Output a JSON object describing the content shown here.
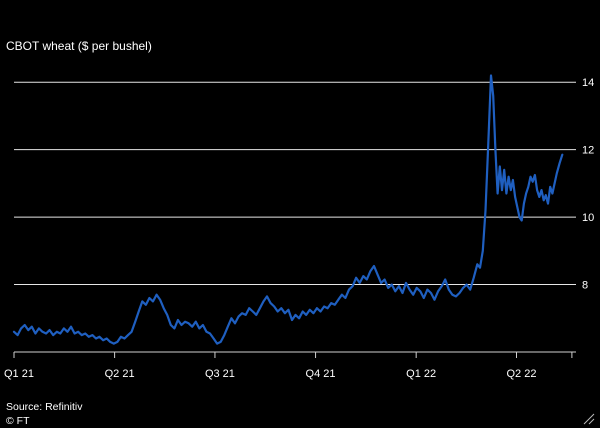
{
  "chart_data": {
    "type": "line",
    "title": "CBOT wheat ($ per bushel)",
    "source": "Source: Refinitiv",
    "credit": "© FT",
    "xlabel": "",
    "ylabel": "",
    "ylim": [
      6,
      14.6
    ],
    "xlim": [
      0,
      20.5
    ],
    "y_ticks": [
      8,
      10,
      12,
      14
    ],
    "x_ticks": [
      {
        "label": "Q1 21",
        "x": 0
      },
      {
        "label": "Q2 21",
        "x": 3.67
      },
      {
        "label": "Q3 21",
        "x": 7.33
      },
      {
        "label": "Q4 21",
        "x": 11
      },
      {
        "label": "Q1 22",
        "x": 14.67
      },
      {
        "label": "Q2 22",
        "x": 18.33
      }
    ],
    "grid": true,
    "colors": {
      "line": "#1f5fc0",
      "background": "#000000",
      "grid": "#e6e6e6"
    },
    "series": [
      {
        "name": "",
        "points": [
          [
            0.0,
            6.6
          ],
          [
            0.13,
            6.5
          ],
          [
            0.26,
            6.7
          ],
          [
            0.39,
            6.8
          ],
          [
            0.52,
            6.65
          ],
          [
            0.65,
            6.75
          ],
          [
            0.78,
            6.55
          ],
          [
            0.91,
            6.7
          ],
          [
            1.04,
            6.6
          ],
          [
            1.17,
            6.55
          ],
          [
            1.3,
            6.65
          ],
          [
            1.43,
            6.5
          ],
          [
            1.56,
            6.6
          ],
          [
            1.69,
            6.55
          ],
          [
            1.82,
            6.7
          ],
          [
            1.95,
            6.6
          ],
          [
            2.08,
            6.75
          ],
          [
            2.21,
            6.55
          ],
          [
            2.34,
            6.6
          ],
          [
            2.47,
            6.5
          ],
          [
            2.6,
            6.55
          ],
          [
            2.73,
            6.45
          ],
          [
            2.86,
            6.5
          ],
          [
            2.99,
            6.4
          ],
          [
            3.12,
            6.45
          ],
          [
            3.25,
            6.35
          ],
          [
            3.38,
            6.4
          ],
          [
            3.51,
            6.3
          ],
          [
            3.64,
            6.25
          ],
          [
            3.77,
            6.3
          ],
          [
            3.9,
            6.45
          ],
          [
            4.03,
            6.4
          ],
          [
            4.16,
            6.5
          ],
          [
            4.29,
            6.6
          ],
          [
            4.42,
            6.9
          ],
          [
            4.55,
            7.2
          ],
          [
            4.68,
            7.5
          ],
          [
            4.81,
            7.4
          ],
          [
            4.94,
            7.6
          ],
          [
            5.07,
            7.5
          ],
          [
            5.2,
            7.7
          ],
          [
            5.33,
            7.55
          ],
          [
            5.46,
            7.3
          ],
          [
            5.59,
            7.1
          ],
          [
            5.72,
            6.8
          ],
          [
            5.85,
            6.7
          ],
          [
            5.98,
            6.95
          ],
          [
            6.11,
            6.8
          ],
          [
            6.24,
            6.9
          ],
          [
            6.37,
            6.85
          ],
          [
            6.5,
            6.75
          ],
          [
            6.63,
            6.9
          ],
          [
            6.76,
            6.7
          ],
          [
            6.89,
            6.8
          ],
          [
            7.02,
            6.6
          ],
          [
            7.15,
            6.55
          ],
          [
            7.28,
            6.4
          ],
          [
            7.41,
            6.25
          ],
          [
            7.54,
            6.3
          ],
          [
            7.67,
            6.5
          ],
          [
            7.8,
            6.75
          ],
          [
            7.93,
            7.0
          ],
          [
            8.06,
            6.85
          ],
          [
            8.19,
            7.05
          ],
          [
            8.32,
            7.15
          ],
          [
            8.45,
            7.1
          ],
          [
            8.58,
            7.3
          ],
          [
            8.71,
            7.2
          ],
          [
            8.84,
            7.1
          ],
          [
            8.97,
            7.3
          ],
          [
            9.1,
            7.5
          ],
          [
            9.23,
            7.65
          ],
          [
            9.36,
            7.45
          ],
          [
            9.49,
            7.35
          ],
          [
            9.62,
            7.2
          ],
          [
            9.75,
            7.3
          ],
          [
            9.88,
            7.15
          ],
          [
            10.01,
            7.25
          ],
          [
            10.14,
            6.95
          ],
          [
            10.27,
            7.1
          ],
          [
            10.4,
            7.0
          ],
          [
            10.53,
            7.2
          ],
          [
            10.66,
            7.1
          ],
          [
            10.79,
            7.25
          ],
          [
            10.92,
            7.15
          ],
          [
            11.05,
            7.3
          ],
          [
            11.18,
            7.2
          ],
          [
            11.31,
            7.35
          ],
          [
            11.44,
            7.3
          ],
          [
            11.57,
            7.45
          ],
          [
            11.7,
            7.4
          ],
          [
            11.83,
            7.55
          ],
          [
            11.96,
            7.7
          ],
          [
            12.09,
            7.6
          ],
          [
            12.22,
            7.85
          ],
          [
            12.35,
            7.95
          ],
          [
            12.48,
            8.2
          ],
          [
            12.61,
            8.05
          ],
          [
            12.74,
            8.25
          ],
          [
            12.87,
            8.15
          ],
          [
            13.0,
            8.4
          ],
          [
            13.13,
            8.55
          ],
          [
            13.26,
            8.3
          ],
          [
            13.39,
            8.05
          ],
          [
            13.52,
            8.15
          ],
          [
            13.65,
            7.9
          ],
          [
            13.78,
            8.0
          ],
          [
            13.91,
            7.8
          ],
          [
            14.04,
            7.95
          ],
          [
            14.17,
            7.75
          ],
          [
            14.3,
            8.05
          ],
          [
            14.43,
            7.85
          ],
          [
            14.56,
            7.7
          ],
          [
            14.69,
            7.9
          ],
          [
            14.82,
            7.8
          ],
          [
            14.95,
            7.6
          ],
          [
            15.08,
            7.85
          ],
          [
            15.21,
            7.75
          ],
          [
            15.34,
            7.55
          ],
          [
            15.47,
            7.8
          ],
          [
            15.6,
            7.95
          ],
          [
            15.73,
            8.15
          ],
          [
            15.86,
            7.85
          ],
          [
            15.99,
            7.7
          ],
          [
            16.12,
            7.65
          ],
          [
            16.25,
            7.75
          ],
          [
            16.38,
            7.9
          ],
          [
            16.51,
            8.0
          ],
          [
            16.64,
            7.85
          ],
          [
            16.77,
            8.2
          ],
          [
            16.9,
            8.6
          ],
          [
            17.0,
            8.5
          ],
          [
            17.1,
            9.0
          ],
          [
            17.2,
            10.2
          ],
          [
            17.3,
            12.2
          ],
          [
            17.4,
            14.2
          ],
          [
            17.48,
            13.6
          ],
          [
            17.56,
            12.0
          ],
          [
            17.64,
            10.7
          ],
          [
            17.72,
            11.5
          ],
          [
            17.8,
            10.8
          ],
          [
            17.88,
            11.4
          ],
          [
            17.96,
            10.7
          ],
          [
            18.04,
            11.2
          ],
          [
            18.12,
            10.8
          ],
          [
            18.2,
            11.1
          ],
          [
            18.28,
            10.6
          ],
          [
            18.36,
            10.3
          ],
          [
            18.44,
            10.0
          ],
          [
            18.52,
            9.9
          ],
          [
            18.6,
            10.4
          ],
          [
            18.68,
            10.7
          ],
          [
            18.76,
            10.9
          ],
          [
            18.84,
            11.2
          ],
          [
            18.92,
            11.05
          ],
          [
            19.0,
            11.25
          ],
          [
            19.08,
            10.8
          ],
          [
            19.16,
            10.6
          ],
          [
            19.24,
            10.8
          ],
          [
            19.32,
            10.5
          ],
          [
            19.4,
            10.65
          ],
          [
            19.48,
            10.4
          ],
          [
            19.56,
            10.9
          ],
          [
            19.64,
            10.7
          ],
          [
            19.72,
            11.0
          ],
          [
            19.8,
            11.3
          ],
          [
            19.9,
            11.6
          ],
          [
            20.0,
            11.85
          ]
        ]
      }
    ]
  }
}
